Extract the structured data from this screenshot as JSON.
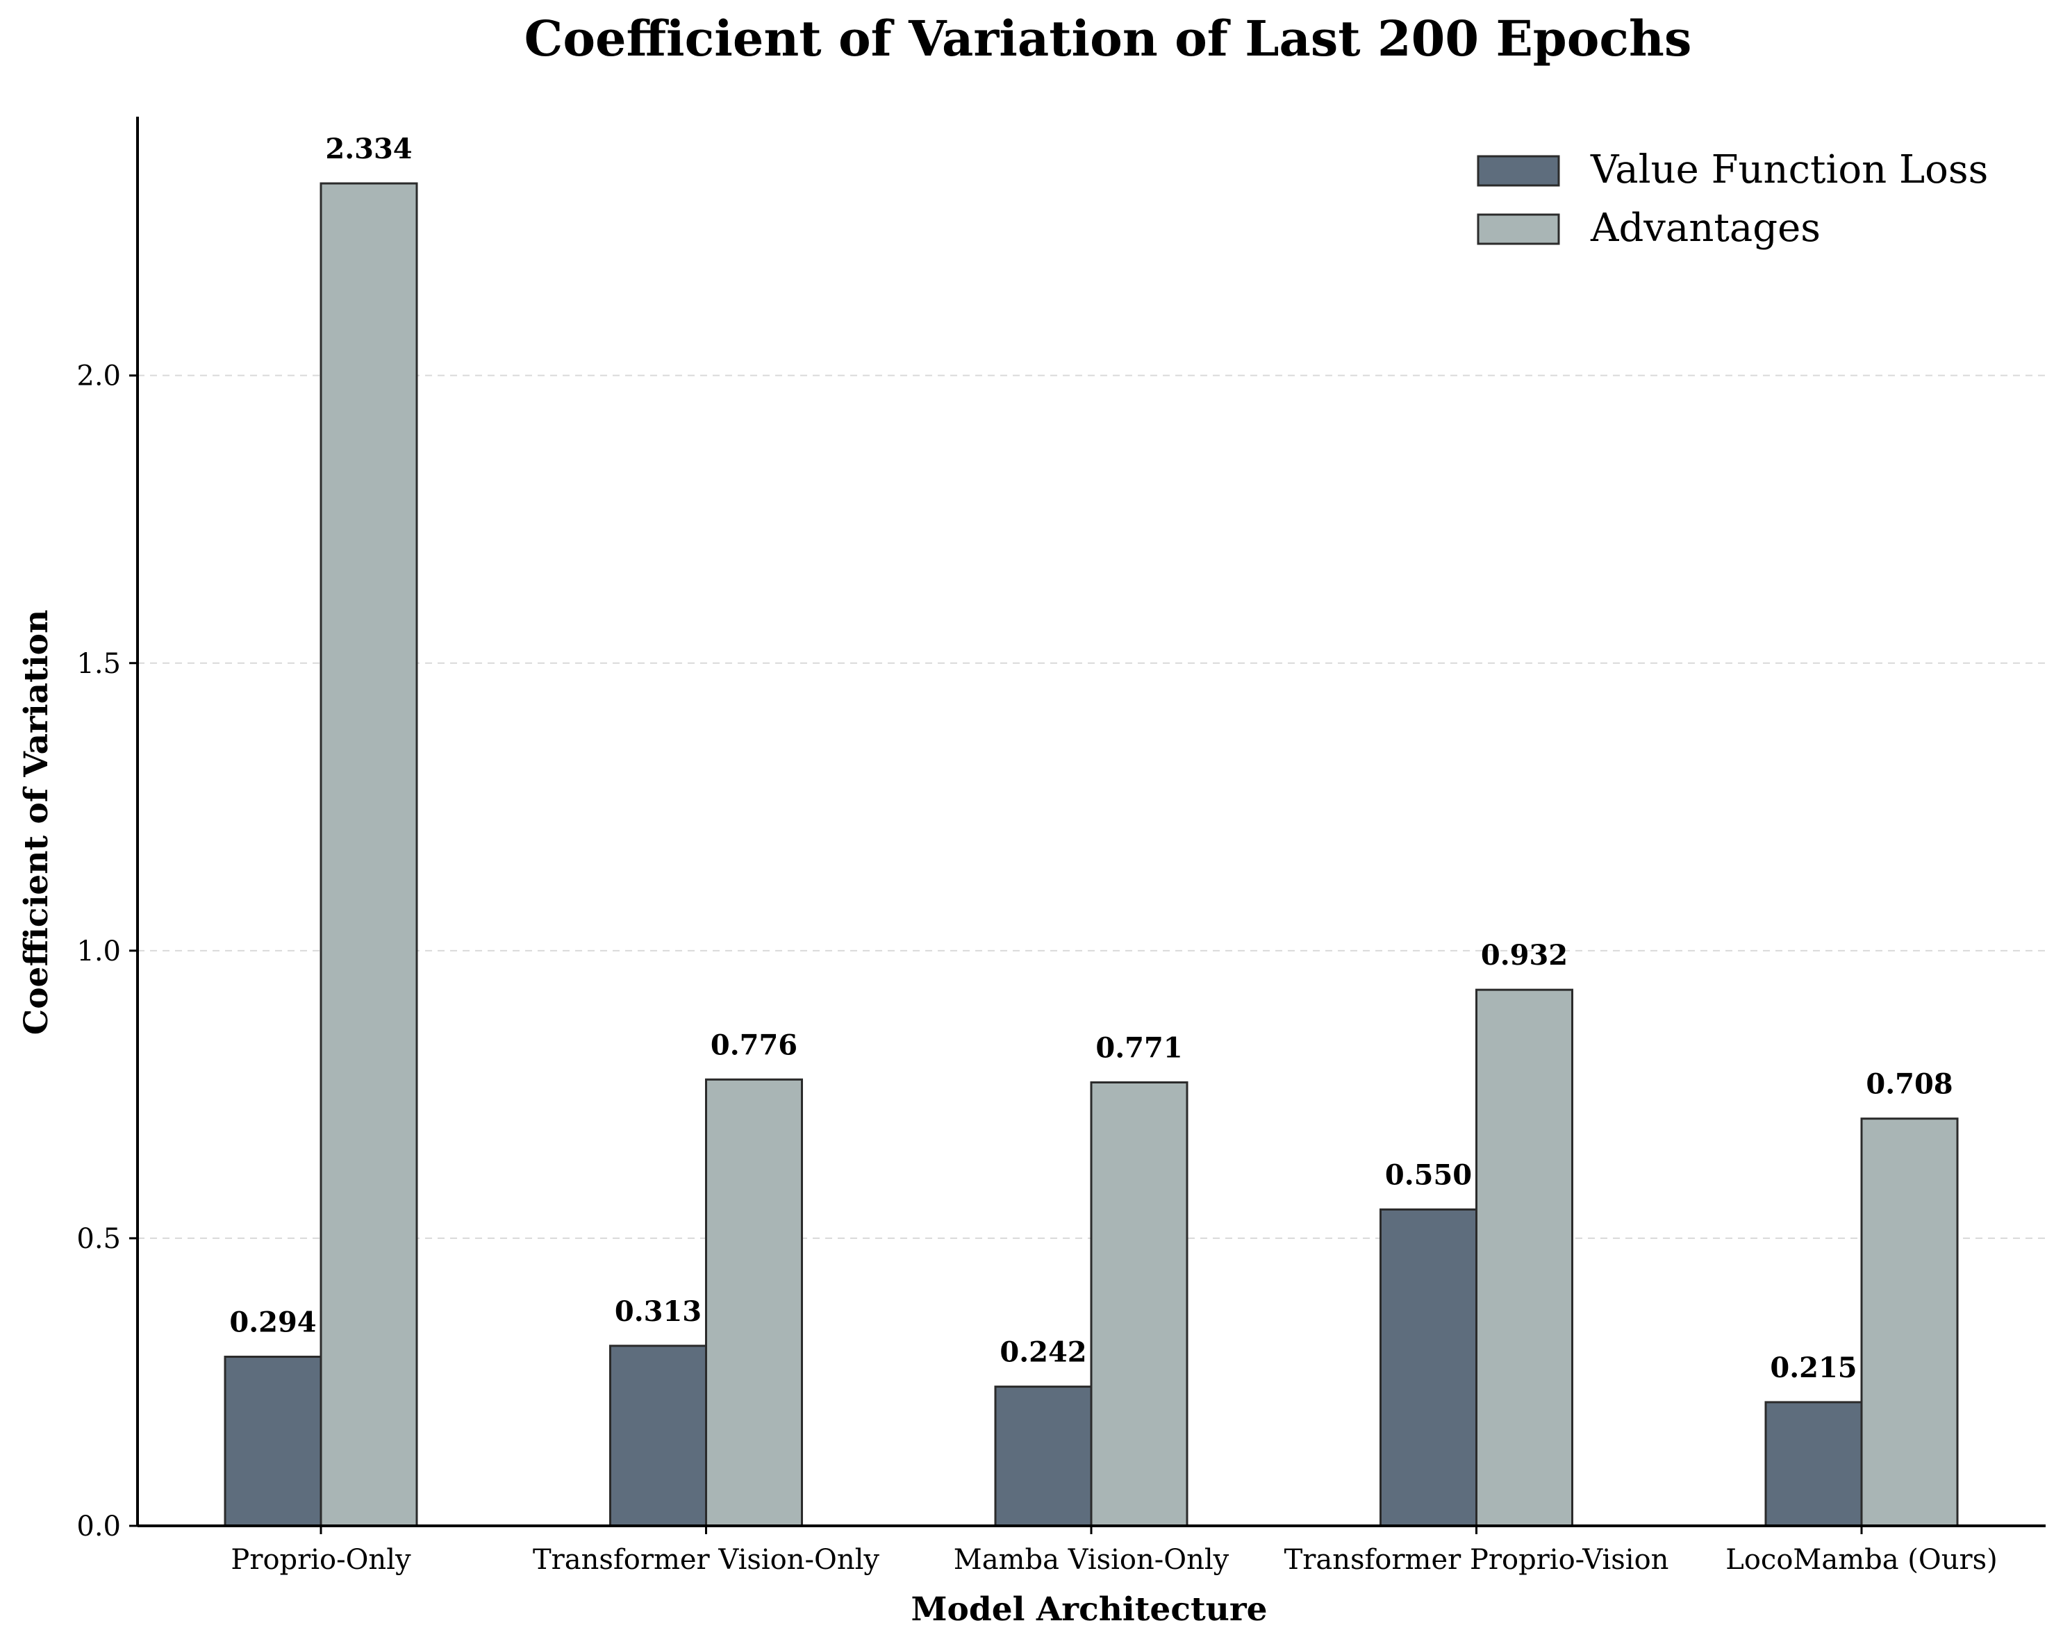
{
  "chart_data": {
    "type": "bar",
    "title": "Coefficient of Variation of Last 200 Epochs",
    "xlabel": "Model Architecture",
    "ylabel": "Coefficient of Variation",
    "categories": [
      "Proprio-Only",
      "Transformer Vision-Only",
      "Mamba Vision-Only",
      "Transformer Proprio-Vision",
      "LocoMamba (Ours)"
    ],
    "series": [
      {
        "name": "Value Function Loss",
        "values": [
          0.294,
          0.313,
          0.242,
          0.55,
          0.215
        ],
        "labels": [
          "0.294",
          "0.313",
          "0.242",
          "0.550",
          "0.215"
        ],
        "color": "#5e6d7d"
      },
      {
        "name": "Advantages",
        "values": [
          2.334,
          0.776,
          0.771,
          0.932,
          0.708
        ],
        "labels": [
          "2.334",
          "0.776",
          "0.771",
          "0.932",
          "0.708"
        ],
        "color": "#a9b5b5"
      }
    ],
    "ylim": [
      0,
      2.45
    ],
    "yticks": [
      0.0,
      0.5,
      1.0,
      1.5,
      2.0
    ],
    "ytick_labels": [
      "0.0",
      "0.5",
      "1.0",
      "1.5",
      "2.0"
    ],
    "grid": true,
    "legend": "top-right"
  }
}
